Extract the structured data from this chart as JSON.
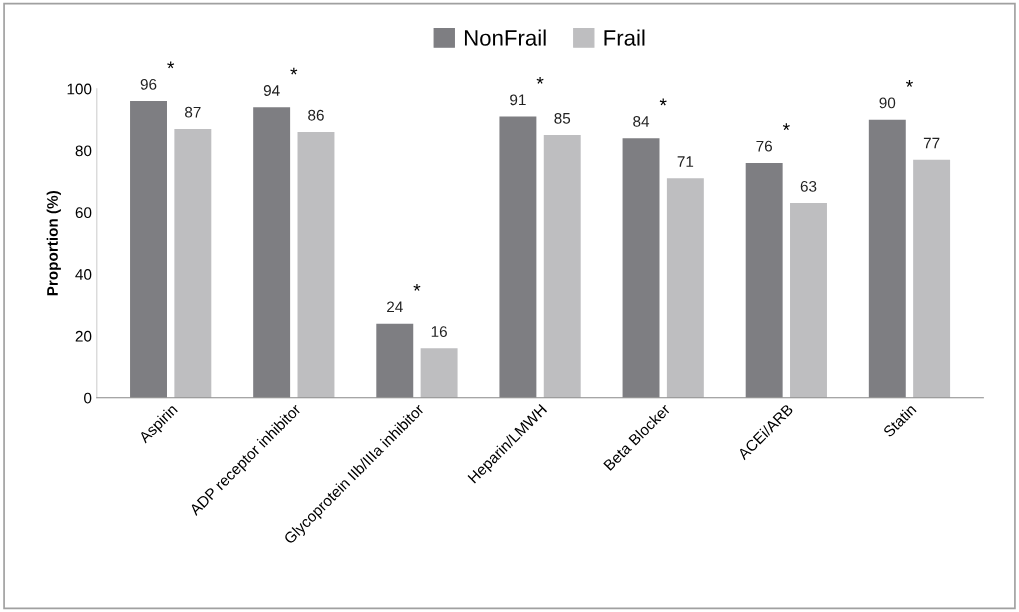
{
  "chart_data": {
    "type": "bar",
    "ylabel": "Proportion (%)",
    "categories": [
      "Aspirin",
      "ADP receptor inhibitor",
      "Glycoprotein IIb/IIIa inhibitor",
      "Heparin/LMWH",
      "Beta Blocker",
      "ACEi/ARB",
      "Statin"
    ],
    "series": [
      {
        "name": "NonFrail",
        "color": "#7e7e82",
        "values": [
          96,
          94,
          24,
          91,
          84,
          76,
          90
        ]
      },
      {
        "name": "Frail",
        "color": "#bebec0",
        "values": [
          87,
          86,
          16,
          85,
          71,
          63,
          77
        ]
      }
    ],
    "ylim": [
      0,
      100
    ],
    "yticks": [
      0,
      20,
      40,
      60,
      80,
      100
    ],
    "data_labels": true,
    "grid": false,
    "legend": "top",
    "annotations": [
      "*",
      "*",
      "*",
      "*",
      "*",
      "*",
      "*"
    ]
  }
}
